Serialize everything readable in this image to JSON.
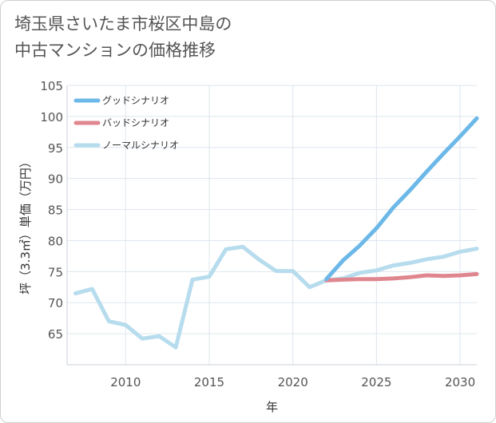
{
  "title": {
    "line1": "埼玉県さいたま市桜区中島の",
    "line2": "中古マンションの価格推移"
  },
  "chart_data": {
    "type": "line",
    "title": "埼玉県さいたま市桜区中島の中古マンションの価格推移",
    "xlabel": "年",
    "ylabel": "坪（3.3㎡）単価（万円）",
    "xlim": [
      2006.5,
      2031
    ],
    "ylim": [
      60,
      105
    ],
    "x_ticks": [
      2010,
      2015,
      2020,
      2025,
      2030
    ],
    "y_ticks": [
      65,
      70,
      75,
      80,
      85,
      90,
      95,
      100,
      105
    ],
    "grid": true,
    "legend_position": "top-left",
    "series": [
      {
        "name": "グッドシナリオ",
        "color": "#6cb8e8",
        "x": [
          2022,
          2023,
          2024,
          2025,
          2026,
          2027,
          2028,
          2029,
          2030,
          2031
        ],
        "y": [
          73.8,
          76.8,
          79.2,
          82.0,
          85.3,
          88.1,
          91.1,
          94.0,
          96.8,
          99.7
        ]
      },
      {
        "name": "バッドシナリオ",
        "color": "#e0868e",
        "x": [
          2022,
          2023,
          2024,
          2025,
          2026,
          2027,
          2028,
          2029,
          2030,
          2031
        ],
        "y": [
          73.6,
          73.7,
          73.8,
          73.8,
          73.9,
          74.1,
          74.4,
          74.3,
          74.4,
          74.6
        ]
      },
      {
        "name": "ノーマルシナリオ",
        "color": "#b6dced",
        "x": [
          2007,
          2008,
          2009,
          2010,
          2011,
          2012,
          2013,
          2014,
          2015,
          2016,
          2017,
          2018,
          2019,
          2020,
          2021,
          2022,
          2023,
          2024,
          2025,
          2026,
          2027,
          2028,
          2029,
          2030,
          2031
        ],
        "y": [
          71.5,
          72.2,
          67.0,
          66.4,
          64.2,
          64.6,
          62.8,
          73.7,
          74.2,
          78.6,
          79.0,
          76.9,
          75.1,
          75.1,
          72.5,
          73.6,
          73.9,
          74.8,
          75.2,
          76.0,
          76.4,
          77.0,
          77.4,
          78.2,
          78.7
        ]
      }
    ]
  }
}
